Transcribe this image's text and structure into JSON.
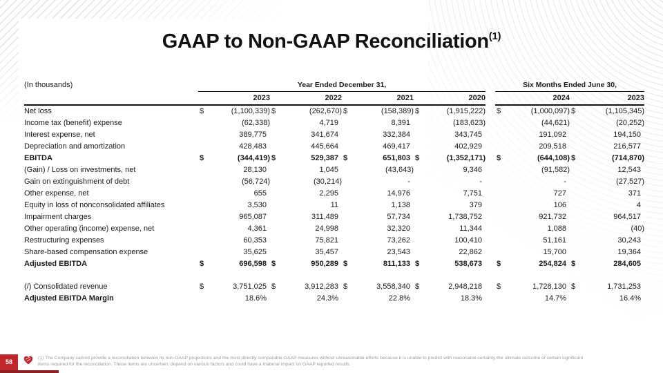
{
  "slide": {
    "title": "GAAP to Non-GAAP Reconciliation",
    "title_superscript": "(1)",
    "page_number": "58",
    "footnote_line1": "(1) The Company cannot provide a reconciliation between its non-GAAP projections and the most directly comparable GAAP measures without unreasonable efforts because it is unable to predict with reasonable certainty the ultimate outcome of certain significant",
    "footnote_line2": "items required for the reconciliation. These items are uncertain, depend on various factors and could have a material impact on GAAP reported results."
  },
  "colors": {
    "accent_red": "#c0282e",
    "dark_red": "#8e2023",
    "footnote_gray": "#9b9b9b",
    "rule_black": "#111111"
  },
  "table": {
    "units_label": "(In thousands)",
    "group_headers": [
      {
        "label": "Year Ended December 31,",
        "columns": 4
      },
      {
        "label": "Six Months Ended June 30,",
        "columns": 2
      }
    ],
    "year_columns": [
      "2023",
      "2022",
      "2021",
      "2020",
      "2024",
      "2023"
    ],
    "rows": [
      {
        "label": "Net loss",
        "dollar": true,
        "values": [
          "(1,100,339)",
          "(262,670)",
          "(158,389)",
          "(1,915,222)",
          "(1,000,097)",
          "(1,105,345)"
        ]
      },
      {
        "label": "Income tax (benefit) expense",
        "values": [
          "(62,338)",
          "4,719",
          "8,391",
          "(183,623)",
          "(44,621)",
          "(20,252)"
        ]
      },
      {
        "label": "Interest expense, net",
        "values": [
          "389,775",
          "341,674",
          "332,384",
          "343,745",
          "191,092",
          "194,150"
        ]
      },
      {
        "label": "Depreciation and amortization",
        "values": [
          "428,483",
          "445,664",
          "469,417",
          "402,929",
          "209,518",
          "216,577"
        ]
      },
      {
        "label": "EBITDA",
        "bold": true,
        "dollar": true,
        "values": [
          "(344,419)",
          "529,387",
          "651,803",
          "(1,352,171)",
          "(644,108)",
          "(714,870)"
        ]
      },
      {
        "label": "(Gain) / Loss on investments, net",
        "values": [
          "28,130",
          "1,045",
          "(43,643)",
          "9,346",
          "(91,582)",
          "12,543"
        ]
      },
      {
        "label": "Gain on extinguishment of debt",
        "values": [
          "(56,724)",
          "(30,214)",
          "-",
          "-",
          "-",
          "(27,527)"
        ]
      },
      {
        "label": "Other expense, net",
        "values": [
          "655",
          "2,295",
          "14,976",
          "7,751",
          "727",
          "371"
        ]
      },
      {
        "label": "Equity in loss of nonconsolidated affiliates",
        "values": [
          "3,530",
          "11",
          "1,138",
          "379",
          "106",
          "4"
        ]
      },
      {
        "label": "Impairment charges",
        "values": [
          "965,087",
          "311,489",
          "57,734",
          "1,738,752",
          "921,732",
          "964,517"
        ]
      },
      {
        "label": "Other operating (income) expense, net",
        "values": [
          "4,361",
          "24,998",
          "32,320",
          "11,344",
          "1,088",
          "(40)"
        ]
      },
      {
        "label": "Restructuring expenses",
        "values": [
          "60,353",
          "75,821",
          "73,262",
          "100,410",
          "51,161",
          "30,243"
        ]
      },
      {
        "label": "Share-based compensation expense",
        "values": [
          "35,625",
          "35,457",
          "23,543",
          "22,862",
          "15,700",
          "19,364"
        ]
      },
      {
        "label": "Adjusted EBITDA",
        "bold": true,
        "dollar": true,
        "values": [
          "696,598",
          "950,289",
          "811,133",
          "538,673",
          "254,824",
          "284,605"
        ]
      },
      {
        "label": "",
        "spacer": true,
        "values": [
          "",
          "",
          "",
          "",
          "",
          ""
        ]
      },
      {
        "label": "(/) Consolidated revenue",
        "dollar": true,
        "values": [
          "3,751,025",
          "3,912,283",
          "3,558,340",
          "2,948,218",
          "1,728,130",
          "1,731,253"
        ]
      },
      {
        "label": "Adjusted EBITDA Margin",
        "bold_label": true,
        "values": [
          "18.6%",
          "24.3%",
          "22.8%",
          "18.3%",
          "14.7%",
          "16.4%"
        ]
      }
    ]
  }
}
